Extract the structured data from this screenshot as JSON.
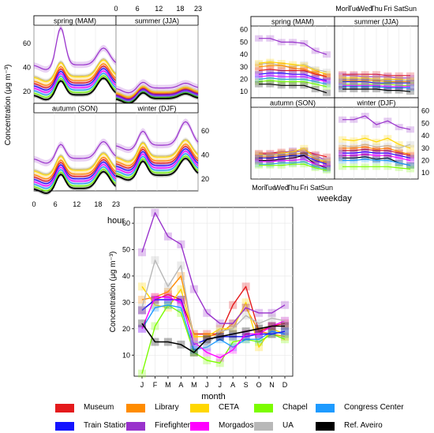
{
  "colors": {
    "Museum": "#e41a1c",
    "Library": "#ff8c00",
    "CETA": "#ffd700",
    "Chapel": "#7cfc00",
    "Congress Center": "#1e9bff",
    "Train Station": "#1414ff",
    "Firefighters": "#9932cc",
    "Morgados": "#ff00ff",
    "UA": "#b8b8b8",
    "Ref. Aveiro": "#000000"
  },
  "chart_data": [
    {
      "type": "line",
      "panel": "hour",
      "xlabel": "hour",
      "ylabel": "Concentration (μg m⁻³)",
      "subplots": [
        "spring (MAM)",
        "summer (JJA)",
        "autumn (SON)",
        "winter (DJF)"
      ],
      "x_ticks_bottom": [
        0,
        6,
        12,
        18,
        23
      ],
      "x_ticks_top": [
        0,
        6,
        12,
        18,
        23
      ],
      "y_ticks_left": [
        20,
        40,
        60
      ],
      "y_ticks_right": [
        20,
        40,
        60
      ],
      "ylim": [
        10,
        75
      ],
      "xlim": [
        0,
        23
      ]
    },
    {
      "type": "line",
      "panel": "weekday",
      "xlabel": "weekday",
      "ylabel": "",
      "subplots": [
        "spring (MAM)",
        "summer (JJA)",
        "autumn (SON)",
        "winter (DJF)"
      ],
      "categories": [
        "Mon",
        "Tue",
        "Wed",
        "Thu",
        "Fri",
        "Sat",
        "Sun"
      ],
      "x_tick_labels_bottom": [
        "Mon",
        "Tue",
        "Wed",
        "Thu",
        "Fri",
        "Sat",
        "Sun"
      ],
      "x_tick_labels_top": [
        "Mon",
        "Tue",
        "Wed",
        "Thu",
        "Fri",
        "Sat",
        "Sun"
      ],
      "y_ticks_left": [
        10,
        20,
        30,
        40,
        50,
        60
      ],
      "y_ticks_right": [
        10,
        20,
        30,
        40,
        50,
        60
      ],
      "ylim": [
        5,
        63
      ],
      "series_spring": [
        {
          "name": "Firefighters",
          "values": [
            53,
            53,
            50,
            50,
            49,
            43,
            40
          ]
        },
        {
          "name": "UA",
          "values": [
            32,
            33,
            31,
            30,
            32,
            28,
            26
          ]
        },
        {
          "name": "CETA",
          "values": [
            33,
            34,
            33,
            32,
            31,
            27,
            24
          ]
        },
        {
          "name": "Library",
          "values": [
            30,
            31,
            31,
            29,
            28,
            25,
            22
          ]
        },
        {
          "name": "Museum",
          "values": [
            27,
            28,
            27,
            27,
            27,
            24,
            22
          ]
        },
        {
          "name": "Train Station",
          "values": [
            24,
            25,
            25,
            24,
            24,
            21,
            19
          ]
        },
        {
          "name": "Morgados",
          "values": [
            22,
            23,
            22,
            22,
            22,
            20,
            18
          ]
        },
        {
          "name": "Congress Center",
          "values": [
            20,
            21,
            20,
            20,
            20,
            18,
            16
          ]
        },
        {
          "name": "Chapel",
          "values": [
            18,
            19,
            18,
            18,
            18,
            16,
            14
          ]
        },
        {
          "name": "Ref. Aveiro",
          "values": [
            16,
            16,
            15,
            15,
            15,
            12,
            9
          ]
        }
      ],
      "series_summer": [
        {
          "name": "Museum",
          "values": [
            24,
            24,
            24,
            24,
            23,
            23,
            23
          ]
        },
        {
          "name": "Firefighters",
          "values": [
            23,
            23,
            22,
            22,
            22,
            21,
            21
          ]
        },
        {
          "name": "CETA",
          "values": [
            21,
            21,
            21,
            20,
            20,
            20,
            19
          ]
        },
        {
          "name": "UA",
          "values": [
            20,
            20,
            20,
            20,
            19,
            19,
            19
          ]
        },
        {
          "name": "Library",
          "values": [
            19,
            19,
            19,
            19,
            18,
            18,
            18
          ]
        },
        {
          "name": "Train Station",
          "values": [
            18,
            18,
            18,
            17,
            17,
            17,
            17
          ]
        },
        {
          "name": "Chapel",
          "values": [
            16,
            16,
            16,
            16,
            16,
            15,
            15
          ]
        },
        {
          "name": "Morgados",
          "values": [
            15,
            15,
            15,
            15,
            14,
            14,
            14
          ]
        },
        {
          "name": "Congress Center",
          "values": [
            14,
            14,
            14,
            14,
            13,
            13,
            13
          ]
        },
        {
          "name": "Ref. Aveiro",
          "values": [
            12,
            12,
            12,
            12,
            11,
            11,
            10
          ]
        }
      ],
      "series_autumn": [
        {
          "name": "Museum",
          "values": [
            26,
            26,
            27,
            27,
            28,
            25,
            23
          ]
        },
        {
          "name": "Firefighters",
          "values": [
            25,
            25,
            26,
            28,
            27,
            24,
            20
          ]
        },
        {
          "name": "CETA",
          "values": [
            25,
            24,
            26,
            27,
            30,
            22,
            19
          ]
        },
        {
          "name": "UA",
          "values": [
            24,
            24,
            25,
            26,
            28,
            22,
            20
          ]
        },
        {
          "name": "Library",
          "values": [
            23,
            23,
            24,
            25,
            26,
            21,
            18
          ]
        },
        {
          "name": "Train Station",
          "values": [
            22,
            22,
            23,
            24,
            24,
            20,
            17
          ]
        },
        {
          "name": "Ref. Aveiro",
          "values": [
            20,
            20,
            21,
            22,
            24,
            17,
            14
          ]
        },
        {
          "name": "Morgados",
          "values": [
            19,
            19,
            20,
            20,
            21,
            17,
            15
          ]
        },
        {
          "name": "Congress Center",
          "values": [
            17,
            17,
            18,
            18,
            19,
            15,
            13
          ]
        },
        {
          "name": "Chapel",
          "values": [
            16,
            16,
            16,
            17,
            17,
            14,
            12
          ]
        }
      ],
      "series_winter": [
        {
          "name": "Firefighters",
          "values": [
            53,
            53,
            56,
            49,
            52,
            47,
            45
          ]
        },
        {
          "name": "CETA",
          "values": [
            37,
            36,
            38,
            35,
            38,
            33,
            30
          ]
        },
        {
          "name": "UA",
          "values": [
            32,
            31,
            33,
            31,
            32,
            30,
            33
          ]
        },
        {
          "name": "Library",
          "values": [
            30,
            30,
            31,
            29,
            30,
            27,
            25
          ]
        },
        {
          "name": "Museum",
          "values": [
            28,
            28,
            29,
            28,
            28,
            26,
            24
          ]
        },
        {
          "name": "Train Station",
          "values": [
            26,
            26,
            27,
            26,
            26,
            24,
            22
          ]
        },
        {
          "name": "Morgados",
          "values": [
            24,
            24,
            25,
            24,
            24,
            22,
            20
          ]
        },
        {
          "name": "Ref. Aveiro",
          "values": [
            22,
            22,
            23,
            21,
            22,
            18,
            16
          ]
        },
        {
          "name": "Congress Center",
          "values": [
            20,
            20,
            21,
            20,
            20,
            18,
            16
          ]
        },
        {
          "name": "Chapel",
          "values": [
            15,
            15,
            15,
            15,
            15,
            14,
            13
          ]
        }
      ]
    },
    {
      "type": "line",
      "panel": "month",
      "xlabel": "month",
      "ylabel": "Concentration (μg m⁻³)",
      "categories": [
        "J",
        "F",
        "M",
        "A",
        "M",
        "J",
        "J",
        "A",
        "S",
        "O",
        "N",
        "D"
      ],
      "y_ticks": [
        10,
        20,
        30,
        40,
        50,
        60
      ],
      "ylim": [
        2,
        66
      ],
      "series": [
        {
          "name": "Museum",
          "values": [
            27,
            31,
            33,
            31,
            18,
            18,
            18,
            29,
            36,
            19,
            21,
            22
          ]
        },
        {
          "name": "Library",
          "values": [
            31,
            32,
            34,
            40,
            17,
            17,
            18,
            22,
            28,
            19,
            18,
            17
          ]
        },
        {
          "name": "CETA",
          "values": [
            36,
            29,
            28,
            35,
            17,
            17,
            20,
            20,
            30,
            13,
            20,
            18
          ]
        },
        {
          "name": "Chapel",
          "values": [
            3,
            21,
            29,
            26,
            11,
            8,
            7,
            15,
            16,
            15,
            18,
            16
          ]
        },
        {
          "name": "Congress Center",
          "values": [
            20,
            28,
            29,
            28,
            12,
            13,
            16,
            13,
            16,
            16,
            19,
            18
          ]
        },
        {
          "name": "Train Station",
          "values": [
            27,
            31,
            31,
            31,
            14,
            16,
            17,
            17,
            17,
            18,
            18,
            19
          ]
        },
        {
          "name": "Firefighters",
          "values": [
            49,
            64,
            55,
            52,
            35,
            26,
            22,
            22,
            28,
            26,
            26,
            29
          ]
        },
        {
          "name": "Morgados",
          "values": [
            20,
            32,
            32,
            30,
            15,
            11,
            9,
            12,
            18,
            18,
            21,
            23
          ]
        },
        {
          "name": "UA",
          "values": [
            28,
            46,
            36,
            44,
            15,
            14,
            19,
            20,
            25,
            22,
            24,
            23
          ]
        },
        {
          "name": "Ref. Aveiro",
          "values": [
            22,
            15,
            15,
            14,
            11,
            16,
            17,
            18,
            19,
            20,
            21,
            21
          ]
        }
      ]
    }
  ],
  "legend": [
    {
      "label": "Museum"
    },
    {
      "label": "Library"
    },
    {
      "label": "CETA"
    },
    {
      "label": "Chapel"
    },
    {
      "label": "Congress Center"
    },
    {
      "label": "Train Station"
    },
    {
      "label": "Firefighters"
    },
    {
      "label": "Morgados"
    },
    {
      "label": "UA"
    },
    {
      "label": "Ref. Aveiro"
    }
  ]
}
